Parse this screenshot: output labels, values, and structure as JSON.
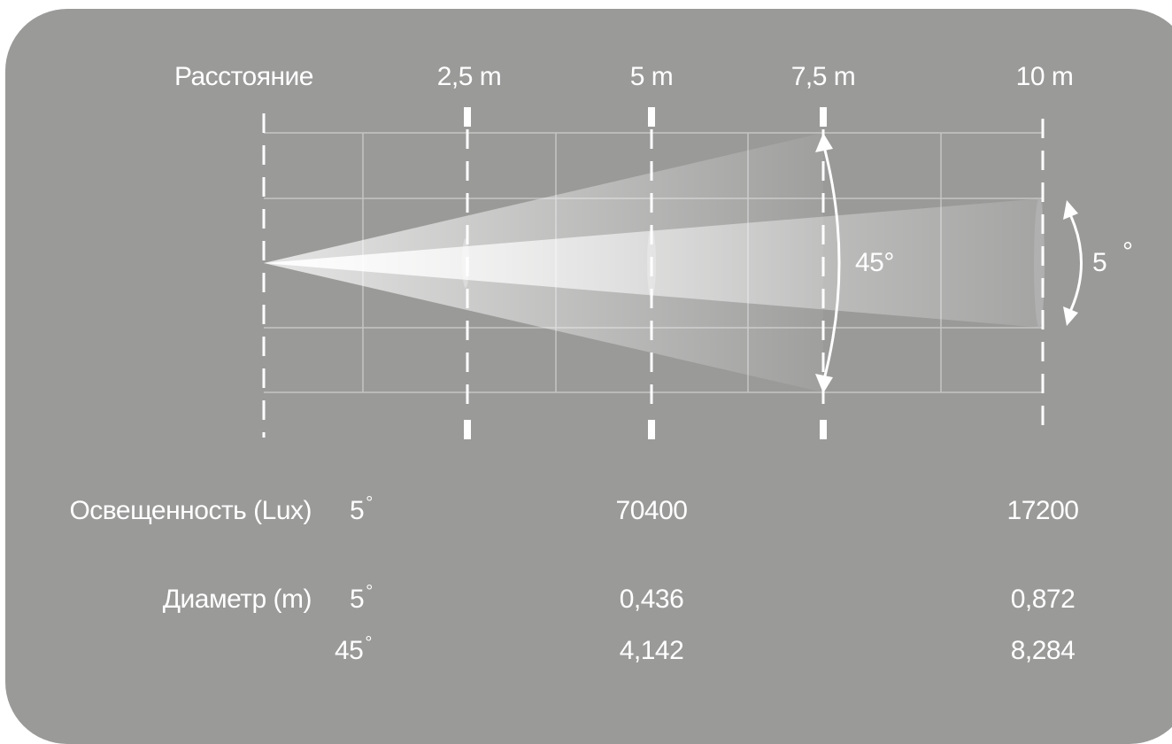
{
  "header": {
    "distance_label": "Расстояние",
    "distances": [
      "2,5 m",
      "5 m",
      "7,5 m",
      "10 m"
    ]
  },
  "beam": {
    "wide_angle_label": "45°",
    "narrow_angle_value": "5",
    "narrow_angle_unit": "°"
  },
  "table": {
    "illuminance_label": "Освещенность (Lux)",
    "diameter_label": "Диаметр (m)",
    "degree_symbol": "°",
    "illuminance_rows": [
      {
        "angle": "5",
        "at_5m": "70400",
        "at_10m": "17200"
      }
    ],
    "diameter_rows": [
      {
        "angle": "5",
        "at_5m": "0,436",
        "at_10m": "0,872"
      },
      {
        "angle": "45",
        "at_5m": "4,142",
        "at_10m": "8,284"
      }
    ]
  },
  "colors": {
    "panel": "#9a9a99",
    "text": "#ffffff",
    "grid": "#c4c4c4"
  }
}
